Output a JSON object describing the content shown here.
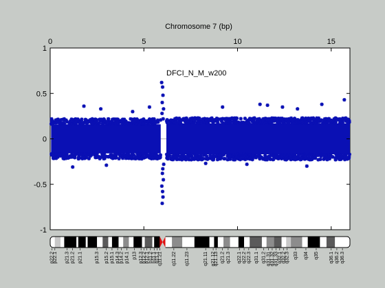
{
  "chart_data": {
    "type": "scatter",
    "title": "Chromosome 7 (bp)",
    "annotation": "DFCI_N_M_w200",
    "x_range": [
      0,
      16
    ],
    "x_ticks": [
      0,
      5,
      10,
      15
    ],
    "ylim": [
      -1,
      1
    ],
    "y_ticks": [
      1,
      0.5,
      0,
      -0.5,
      -1
    ],
    "y_tick_labels": [
      "1",
      "0.5",
      "0",
      "-0.5",
      "-1"
    ],
    "grid": false,
    "marker_color": "#0a10b4",
    "zero_line_color": "#b4b4b4",
    "noise": {
      "segments": [
        {
          "x_from": 0.05,
          "x_to": 5.9,
          "core": 0.16,
          "spread": 0.06
        },
        {
          "x_from": 6.2,
          "x_to": 16.0,
          "core": 0.17,
          "spread": 0.06
        }
      ]
    },
    "points": [
      {
        "x": 5.95,
        "y": 0.62
      },
      {
        "x": 6.0,
        "y": 0.57
      },
      {
        "x": 6.02,
        "y": 0.48
      },
      {
        "x": 5.98,
        "y": 0.4
      },
      {
        "x": 6.05,
        "y": 0.33
      },
      {
        "x": 5.97,
        "y": 0.28
      },
      {
        "x": 6.03,
        "y": 0.22
      },
      {
        "x": 6.06,
        "y": -0.28
      },
      {
        "x": 6.01,
        "y": -0.33
      },
      {
        "x": 5.99,
        "y": -0.38
      },
      {
        "x": 6.04,
        "y": -0.45
      },
      {
        "x": 5.96,
        "y": -0.52
      },
      {
        "x": 6.0,
        "y": -0.58
      },
      {
        "x": 6.02,
        "y": -0.64
      },
      {
        "x": 5.98,
        "y": -0.71
      },
      {
        "x": 1.8,
        "y": 0.36
      },
      {
        "x": 2.7,
        "y": 0.33
      },
      {
        "x": 5.3,
        "y": 0.35
      },
      {
        "x": 4.4,
        "y": 0.3
      },
      {
        "x": 9.2,
        "y": 0.35
      },
      {
        "x": 11.2,
        "y": 0.38
      },
      {
        "x": 11.6,
        "y": 0.37
      },
      {
        "x": 12.4,
        "y": 0.35
      },
      {
        "x": 13.2,
        "y": 0.33
      },
      {
        "x": 14.5,
        "y": 0.38
      },
      {
        "x": 15.7,
        "y": 0.43
      },
      {
        "x": 13.7,
        "y": -0.3
      },
      {
        "x": 10.5,
        "y": -0.28
      },
      {
        "x": 3.0,
        "y": -0.29
      },
      {
        "x": 1.2,
        "y": -0.31
      },
      {
        "x": 8.3,
        "y": -0.27
      }
    ],
    "ideogram": {
      "bands": [
        {
          "from": 0.0,
          "to": 0.25,
          "stain": "gneg"
        },
        {
          "from": 0.25,
          "to": 0.55,
          "stain": "gpos25"
        },
        {
          "from": 0.55,
          "to": 0.75,
          "stain": "gneg"
        },
        {
          "from": 0.75,
          "to": 1.4,
          "stain": "gpos100"
        },
        {
          "from": 1.4,
          "to": 1.5,
          "stain": "gneg"
        },
        {
          "from": 1.5,
          "to": 1.9,
          "stain": "gpos100"
        },
        {
          "from": 1.9,
          "to": 2.0,
          "stain": "gneg"
        },
        {
          "from": 2.0,
          "to": 2.5,
          "stain": "gpos100"
        },
        {
          "from": 2.5,
          "to": 2.8,
          "stain": "gneg"
        },
        {
          "from": 2.8,
          "to": 3.1,
          "stain": "gpos75"
        },
        {
          "from": 3.1,
          "to": 3.3,
          "stain": "gneg"
        },
        {
          "from": 3.3,
          "to": 3.65,
          "stain": "gpos100"
        },
        {
          "from": 3.65,
          "to": 3.9,
          "stain": "gneg"
        },
        {
          "from": 3.9,
          "to": 4.2,
          "stain": "gpos50"
        },
        {
          "from": 4.2,
          "to": 4.45,
          "stain": "gneg"
        },
        {
          "from": 4.45,
          "to": 4.9,
          "stain": "gpos100"
        },
        {
          "from": 4.9,
          "to": 5.05,
          "stain": "gneg"
        },
        {
          "from": 5.05,
          "to": 5.45,
          "stain": "gpos75"
        },
        {
          "from": 5.45,
          "to": 5.55,
          "stain": "gneg"
        },
        {
          "from": 5.55,
          "to": 5.85,
          "stain": "gpos100"
        },
        {
          "from": 5.85,
          "to": 6.15,
          "stain": "acen"
        },
        {
          "from": 6.15,
          "to": 6.5,
          "stain": "gneg"
        },
        {
          "from": 6.5,
          "to": 7.05,
          "stain": "gpos50"
        },
        {
          "from": 7.05,
          "to": 7.7,
          "stain": "gneg"
        },
        {
          "from": 7.7,
          "to": 8.5,
          "stain": "gpos100"
        },
        {
          "from": 8.5,
          "to": 8.75,
          "stain": "gneg"
        },
        {
          "from": 8.75,
          "to": 8.95,
          "stain": "gpos100"
        },
        {
          "from": 8.95,
          "to": 9.25,
          "stain": "gneg"
        },
        {
          "from": 9.25,
          "to": 9.6,
          "stain": "gpos50"
        },
        {
          "from": 9.6,
          "to": 10.05,
          "stain": "gneg"
        },
        {
          "from": 10.05,
          "to": 10.35,
          "stain": "gpos100"
        },
        {
          "from": 10.35,
          "to": 10.65,
          "stain": "gneg"
        },
        {
          "from": 10.65,
          "to": 11.3,
          "stain": "gpos75"
        },
        {
          "from": 11.3,
          "to": 11.55,
          "stain": "gneg"
        },
        {
          "from": 11.55,
          "to": 11.95,
          "stain": "gpos50"
        },
        {
          "from": 11.95,
          "to": 12.35,
          "stain": "gpos75"
        },
        {
          "from": 12.35,
          "to": 12.6,
          "stain": "gneg"
        },
        {
          "from": 12.6,
          "to": 12.85,
          "stain": "gpos25"
        },
        {
          "from": 12.85,
          "to": 13.45,
          "stain": "gpos50"
        },
        {
          "from": 13.45,
          "to": 13.75,
          "stain": "gneg"
        },
        {
          "from": 13.75,
          "to": 14.4,
          "stain": "gpos100"
        },
        {
          "from": 14.4,
          "to": 14.75,
          "stain": "gneg"
        },
        {
          "from": 14.75,
          "to": 15.2,
          "stain": "gpos75"
        },
        {
          "from": 15.2,
          "to": 16.0,
          "stain": "gneg"
        }
      ],
      "band_labels": [
        {
          "x": 0.1,
          "text": "p22.2"
        },
        {
          "x": 0.25,
          "text": "p22.1"
        },
        {
          "x": 0.9,
          "text": "p21.3"
        },
        {
          "x": 1.2,
          "text": "p21.2"
        },
        {
          "x": 1.6,
          "text": "p21.1"
        },
        {
          "x": 2.5,
          "text": "p15.3"
        },
        {
          "x": 3.0,
          "text": "p15.2"
        },
        {
          "x": 3.3,
          "text": "p15.1"
        },
        {
          "x": 3.6,
          "text": "p14.3"
        },
        {
          "x": 3.8,
          "text": "p14.2"
        },
        {
          "x": 4.1,
          "text": "p14.1"
        },
        {
          "x": 4.5,
          "text": "p13"
        },
        {
          "x": 4.85,
          "text": "p12.3"
        },
        {
          "x": 5.0,
          "text": "p12.2"
        },
        {
          "x": 5.15,
          "text": "p12.1"
        },
        {
          "x": 5.35,
          "text": "p11.2"
        },
        {
          "x": 5.55,
          "text": "p11.1"
        },
        {
          "x": 5.7,
          "text": "q11.1"
        },
        {
          "x": 5.85,
          "text": "q11.21"
        },
        {
          "x": 6.6,
          "text": "q11.22"
        },
        {
          "x": 7.3,
          "text": "q11.23"
        },
        {
          "x": 8.3,
          "text": "q21.11"
        },
        {
          "x": 8.7,
          "text": "q21.12"
        },
        {
          "x": 8.85,
          "text": "q21.13"
        },
        {
          "x": 9.2,
          "text": "q21.2"
        },
        {
          "x": 9.5,
          "text": "q21.3"
        },
        {
          "x": 10.1,
          "text": "q22.1"
        },
        {
          "x": 10.35,
          "text": "q22.2"
        },
        {
          "x": 10.6,
          "text": "q22.3"
        },
        {
          "x": 11.0,
          "text": "q31.1"
        },
        {
          "x": 11.4,
          "text": "q31.2"
        },
        {
          "x": 11.65,
          "text": "q31.31"
        },
        {
          "x": 11.85,
          "text": "q31.32"
        },
        {
          "x": 12.05,
          "text": "q31.33"
        },
        {
          "x": 12.25,
          "text": "q32.1"
        },
        {
          "x": 12.45,
          "text": "q32.2"
        },
        {
          "x": 12.65,
          "text": "q32.3"
        },
        {
          "x": 13.1,
          "text": "q33"
        },
        {
          "x": 13.65,
          "text": "q34"
        },
        {
          "x": 14.2,
          "text": "q35"
        },
        {
          "x": 15.0,
          "text": "q36.1"
        },
        {
          "x": 15.3,
          "text": "q36.2"
        },
        {
          "x": 15.6,
          "text": "q36.3"
        }
      ]
    }
  }
}
